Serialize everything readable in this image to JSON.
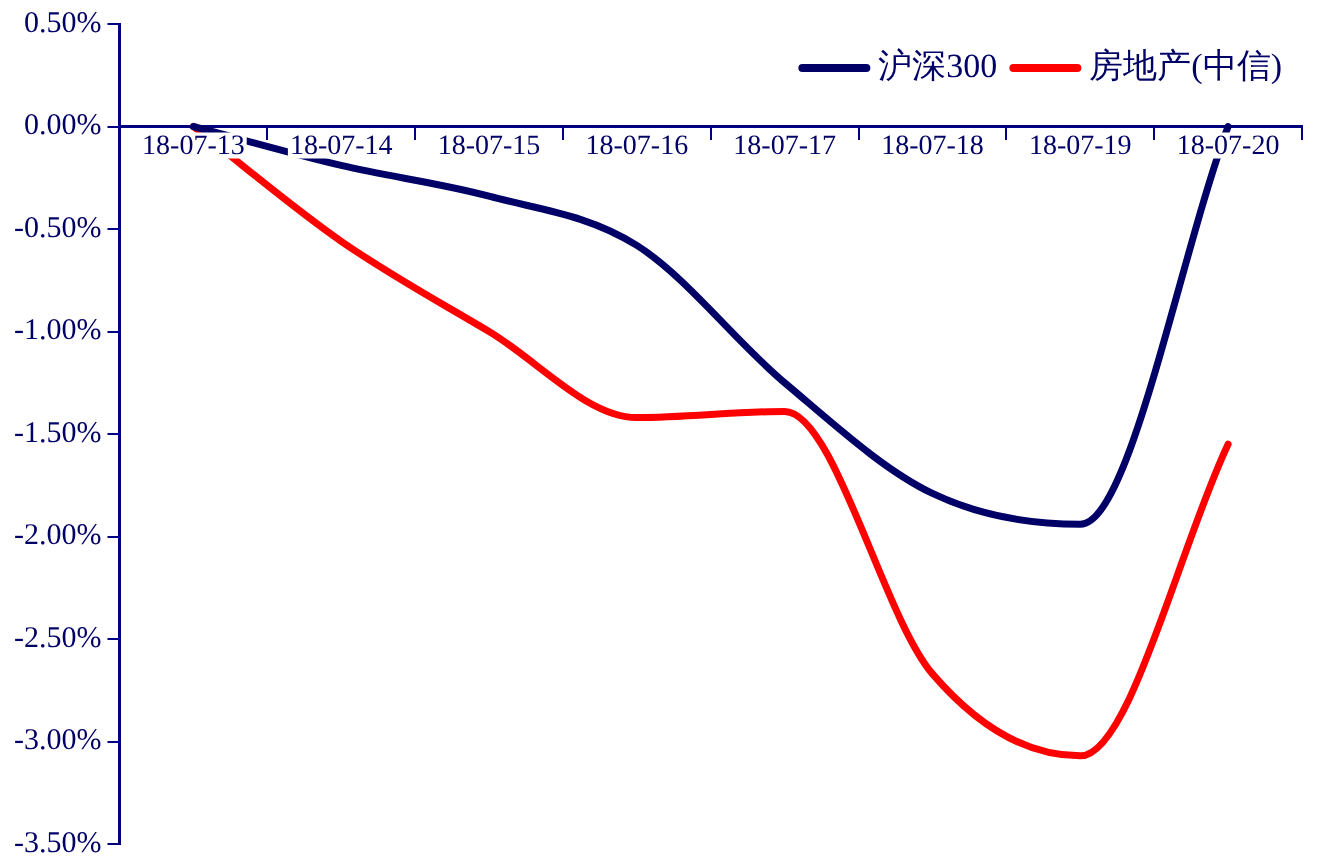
{
  "chart_data": {
    "type": "line",
    "categories": [
      "18-07-13",
      "18-07-14",
      "18-07-15",
      "18-07-16",
      "18-07-17",
      "18-07-18",
      "18-07-19",
      "18-07-20"
    ],
    "series": [
      {
        "name": "沪深300",
        "color": "#000066",
        "values": [
          0,
          -0.19,
          -0.34,
          -0.58,
          -1.25,
          -1.79,
          -1.94,
          0
        ]
      },
      {
        "name": "房地产(中信)",
        "color": "#ff0000",
        "values": [
          0,
          -0.56,
          -1.0,
          -1.42,
          -1.39,
          -2.67,
          -3.07,
          -1.55
        ]
      }
    ],
    "ylim": [
      -3.5,
      0.5
    ],
    "yticks": [
      {
        "value": 0.5,
        "label": "0.50%"
      },
      {
        "value": 0,
        "label": "0.00%"
      },
      {
        "value": -0.5,
        "label": "-0.50%"
      },
      {
        "value": -1,
        "label": "-1.00%"
      },
      {
        "value": -1.5,
        "label": "-1.50%"
      },
      {
        "value": -2,
        "label": "-2.00%"
      },
      {
        "value": -2.5,
        "label": "-2.50%"
      },
      {
        "value": -3,
        "label": "-3.00%"
      },
      {
        "value": -3.5,
        "label": "-3.50%"
      }
    ],
    "grid": false,
    "legend": "top right",
    "marker": "none",
    "line_style": "solid"
  }
}
